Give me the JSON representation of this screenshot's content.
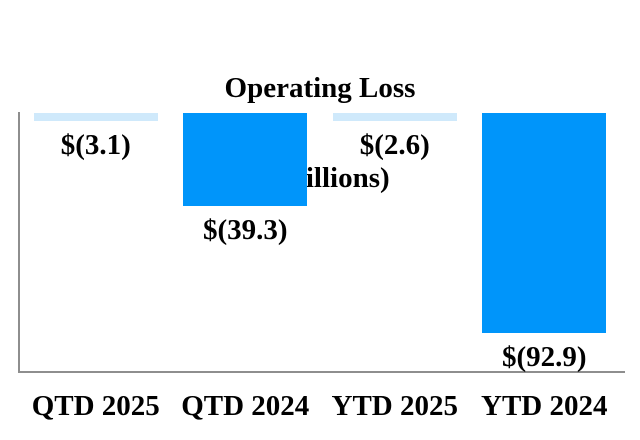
{
  "chart_data": {
    "type": "bar",
    "title": "Operating Loss",
    "subtitle": "($ millions)",
    "categories": [
      "QTD 2025",
      "QTD 2024",
      "YTD 2025",
      "YTD 2024"
    ],
    "values": [
      -3.1,
      -39.3,
      -2.6,
      -92.9
    ],
    "data_labels": [
      "$(3.1)",
      "$(39.3)",
      "$(2.6)",
      "$(92.9)"
    ],
    "bar_colors": [
      "#cfe9fb",
      "#0095fa",
      "#cfe9fb",
      "#0095fa"
    ],
    "axis_color": "#8e8e8e",
    "xlabel": "",
    "ylabel": "",
    "ylim": [
      -109,
      0
    ],
    "baseline": "zero-at-top, negative bars extend downward",
    "grid": false,
    "legend": false,
    "y_axis_ticks": "none"
  }
}
